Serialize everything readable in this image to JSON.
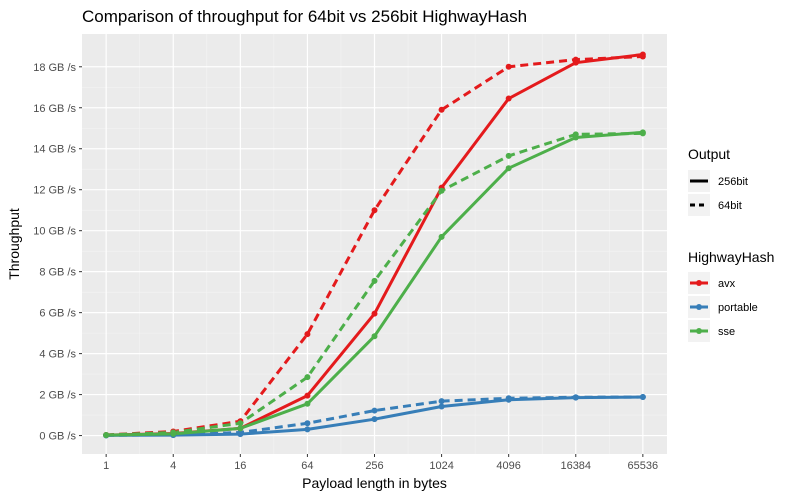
{
  "chart_data": {
    "type": "line",
    "title": "Comparison of throughput for 64bit vs 256bit HighwayHash",
    "xlabel": "Payload length in bytes",
    "ylabel": "Throughput",
    "x_scale": "log2",
    "x": [
      1,
      4,
      16,
      64,
      256,
      1024,
      4096,
      16384,
      65536
    ],
    "x_tick_labels": [
      "1",
      "4",
      "16",
      "64",
      "256",
      "1024",
      "4096",
      "16384",
      "65536"
    ],
    "ylim": [
      -0.9,
      19.6
    ],
    "y_ticks": [
      0,
      2,
      4,
      6,
      8,
      10,
      12,
      14,
      16,
      18
    ],
    "y_tick_labels": [
      "0 GB /s",
      "2 GB /s",
      "4 GB /s",
      "6 GB /s",
      "8 GB /s",
      "10 GB /s",
      "12 GB /s",
      "14 GB /s",
      "16 GB /s",
      "18 GB /s"
    ],
    "grid": true,
    "legend_placement": "right",
    "series": [
      {
        "name": "avx",
        "output": "256bit",
        "color": "#e41a1c",
        "dash": "solid",
        "values": [
          0.02,
          0.1,
          0.35,
          1.95,
          5.95,
          12.1,
          16.45,
          18.2,
          18.6
        ]
      },
      {
        "name": "avx",
        "output": "64bit",
        "color": "#e41a1c",
        "dash": "dashed",
        "values": [
          0.03,
          0.2,
          0.7,
          4.95,
          11.0,
          15.9,
          18.0,
          18.35,
          18.5
        ]
      },
      {
        "name": "portable",
        "output": "256bit",
        "color": "#377eb8",
        "dash": "solid",
        "values": [
          0.01,
          0.02,
          0.07,
          0.3,
          0.8,
          1.42,
          1.75,
          1.85,
          1.88
        ]
      },
      {
        "name": "portable",
        "output": "64bit",
        "color": "#377eb8",
        "dash": "dashed",
        "values": [
          0.01,
          0.04,
          0.15,
          0.6,
          1.22,
          1.68,
          1.82,
          1.87,
          1.88
        ]
      },
      {
        "name": "sse",
        "output": "256bit",
        "color": "#4daf4a",
        "dash": "solid",
        "values": [
          0.02,
          0.08,
          0.35,
          1.55,
          4.85,
          9.7,
          13.05,
          14.55,
          14.8
        ]
      },
      {
        "name": "sse",
        "output": "64bit",
        "color": "#4daf4a",
        "dash": "dashed",
        "values": [
          0.03,
          0.15,
          0.6,
          2.85,
          7.55,
          11.95,
          13.65,
          14.7,
          14.75
        ]
      }
    ],
    "legend": {
      "output_title": "Output",
      "output_items": [
        {
          "label": "256bit",
          "dash": "solid"
        },
        {
          "label": "64bit",
          "dash": "dashed"
        }
      ],
      "hash_title": "HighwayHash",
      "hash_items": [
        {
          "label": "avx",
          "color": "#e41a1c"
        },
        {
          "label": "portable",
          "color": "#377eb8"
        },
        {
          "label": "sse",
          "color": "#4daf4a"
        }
      ]
    }
  }
}
